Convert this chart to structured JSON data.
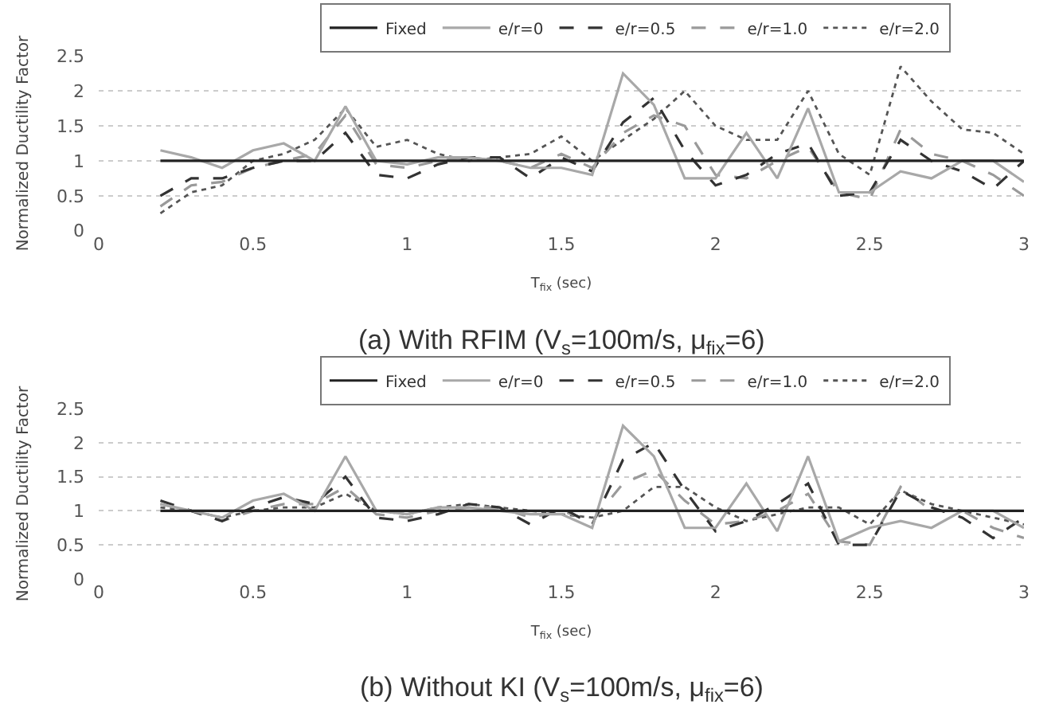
{
  "chart_data": [
    {
      "type": "line",
      "title": "(a) With RFIM (V$_{s}$=100m/s, μ$_{fix}$=6)",
      "xlabel": "T$_{fix}$ (sec)",
      "ylabel": "Normalized Ductility Factor",
      "x": [
        0.2,
        0.3,
        0.4,
        0.5,
        0.6,
        0.7,
        0.8,
        0.9,
        1.0,
        1.1,
        1.2,
        1.3,
        1.4,
        1.5,
        1.6,
        1.7,
        1.8,
        1.9,
        2.0,
        2.1,
        2.2,
        2.3,
        2.4,
        2.5,
        2.6,
        2.7,
        2.8,
        2.9,
        3.0
      ],
      "xlim": [
        0,
        3
      ],
      "xticks": [
        0,
        0.5,
        1,
        1.5,
        2,
        2.5,
        3
      ],
      "ylim": [
        0,
        2.5
      ],
      "yticks": [
        0,
        0.5,
        1,
        1.5,
        2,
        2.5
      ],
      "grid": "y",
      "legend": "top",
      "marker": "none",
      "series": [
        {
          "name": "Fixed",
          "color": "#222222",
          "line_style": "solid",
          "values": [
            1,
            1,
            1,
            1,
            1,
            1,
            1,
            1,
            1,
            1,
            1,
            1,
            1,
            1,
            1,
            1,
            1,
            1,
            1,
            1,
            1,
            1,
            1,
            1,
            1,
            1,
            1,
            1,
            1
          ]
        },
        {
          "name": "e/r=0",
          "color": "#a8a8a8",
          "line_style": "solid",
          "values": [
            1.15,
            1.05,
            0.9,
            1.15,
            1.25,
            1.0,
            1.78,
            1.0,
            0.95,
            1.05,
            1.05,
            1.0,
            0.9,
            0.9,
            0.8,
            2.25,
            1.8,
            0.75,
            0.75,
            1.4,
            0.75,
            1.75,
            0.55,
            0.55,
            0.85,
            0.75,
            1.0,
            1.0,
            0.7
          ]
        },
        {
          "name": "e/r=0.5",
          "color": "#333333",
          "line_style": "dashed",
          "values": [
            0.5,
            0.75,
            0.75,
            0.9,
            1.0,
            1.0,
            1.4,
            0.8,
            0.75,
            0.95,
            1.05,
            1.05,
            0.75,
            1.05,
            0.85,
            1.55,
            1.9,
            1.15,
            0.65,
            0.8,
            1.1,
            1.25,
            0.5,
            0.55,
            1.3,
            1.0,
            0.85,
            0.6,
            1.0
          ]
        },
        {
          "name": "e/r=1.0",
          "color": "#9a9a9a",
          "line_style": "dashed",
          "values": [
            0.35,
            0.65,
            0.7,
            0.9,
            1.0,
            1.1,
            1.65,
            0.95,
            0.9,
            1.0,
            1.05,
            1.0,
            0.9,
            1.1,
            0.9,
            1.4,
            1.65,
            1.5,
            0.8,
            0.75,
            1.0,
            1.2,
            0.55,
            0.45,
            1.45,
            1.1,
            1.0,
            0.8,
            0.5
          ]
        },
        {
          "name": "e/r=2.0",
          "color": "#555555",
          "line_style": "dotted",
          "values": [
            0.25,
            0.55,
            0.65,
            1.0,
            1.1,
            1.3,
            1.75,
            1.2,
            1.3,
            1.1,
            1.0,
            1.05,
            1.1,
            1.35,
            1.0,
            1.3,
            1.6,
            2.0,
            1.5,
            1.3,
            1.3,
            2.0,
            1.1,
            0.8,
            2.35,
            1.85,
            1.45,
            1.4,
            1.1
          ]
        }
      ]
    },
    {
      "type": "line",
      "title": "(b) Without KI (V$_{s}$=100m/s, μ$_{fix}$=6)",
      "xlabel": "T$_{fix}$ (sec)",
      "ylabel": "Normalized Ductility Factor",
      "x": [
        0.2,
        0.3,
        0.4,
        0.5,
        0.6,
        0.7,
        0.8,
        0.9,
        1.0,
        1.1,
        1.2,
        1.3,
        1.4,
        1.5,
        1.6,
        1.7,
        1.8,
        1.9,
        2.0,
        2.1,
        2.2,
        2.3,
        2.4,
        2.5,
        2.6,
        2.7,
        2.8,
        2.9,
        3.0
      ],
      "xlim": [
        0,
        3
      ],
      "xticks": [
        0,
        0.5,
        1,
        1.5,
        2,
        2.5,
        3
      ],
      "ylim": [
        0,
        2.5
      ],
      "yticks": [
        0,
        0.5,
        1,
        1.5,
        2,
        2.5
      ],
      "grid": "y",
      "legend": "top",
      "marker": "none",
      "series": [
        {
          "name": "Fixed",
          "color": "#222222",
          "line_style": "solid",
          "values": [
            1,
            1,
            1,
            1,
            1,
            1,
            1,
            1,
            1,
            1,
            1,
            1,
            1,
            1,
            1,
            1,
            1,
            1,
            1,
            1,
            1,
            1,
            1,
            1,
            1,
            1,
            1,
            1,
            1
          ]
        },
        {
          "name": "e/r=0",
          "color": "#a8a8a8",
          "line_style": "solid",
          "values": [
            1.1,
            1.0,
            0.9,
            1.15,
            1.25,
            1.0,
            1.8,
            1.0,
            0.95,
            1.05,
            1.05,
            1.0,
            0.95,
            0.95,
            0.75,
            2.25,
            1.8,
            0.75,
            0.75,
            1.4,
            0.7,
            1.8,
            0.55,
            0.75,
            0.85,
            0.75,
            1.0,
            1.0,
            0.75
          ]
        },
        {
          "name": "e/r=0.5",
          "color": "#333333",
          "line_style": "dashed",
          "values": [
            1.15,
            1.0,
            0.85,
            1.05,
            1.2,
            1.1,
            1.5,
            0.9,
            0.85,
            0.95,
            1.1,
            1.05,
            0.8,
            1.05,
            0.8,
            1.75,
            2.0,
            1.3,
            0.7,
            0.85,
            1.1,
            1.4,
            0.5,
            0.5,
            1.3,
            1.05,
            0.9,
            0.6,
            0.9
          ]
        },
        {
          "name": "e/r=1.0",
          "color": "#9a9a9a",
          "line_style": "dashed",
          "values": [
            1.1,
            1.0,
            0.85,
            1.0,
            1.1,
            1.1,
            1.35,
            0.95,
            0.9,
            1.0,
            1.05,
            1.05,
            0.9,
            1.0,
            0.85,
            1.4,
            1.6,
            1.15,
            0.8,
            0.85,
            1.0,
            1.25,
            0.55,
            0.5,
            1.35,
            1.0,
            1.0,
            0.75,
            0.6
          ]
        },
        {
          "name": "e/r=2.0",
          "color": "#555555",
          "line_style": "dotted",
          "values": [
            1.05,
            1.0,
            0.9,
            1.0,
            1.05,
            1.05,
            1.25,
            1.0,
            0.95,
            1.05,
            1.1,
            1.05,
            1.0,
            0.95,
            0.9,
            1.0,
            1.35,
            1.35,
            1.05,
            0.85,
            0.95,
            1.05,
            1.05,
            0.8,
            1.3,
            1.1,
            1.0,
            0.9,
            0.8
          ]
        }
      ]
    }
  ]
}
